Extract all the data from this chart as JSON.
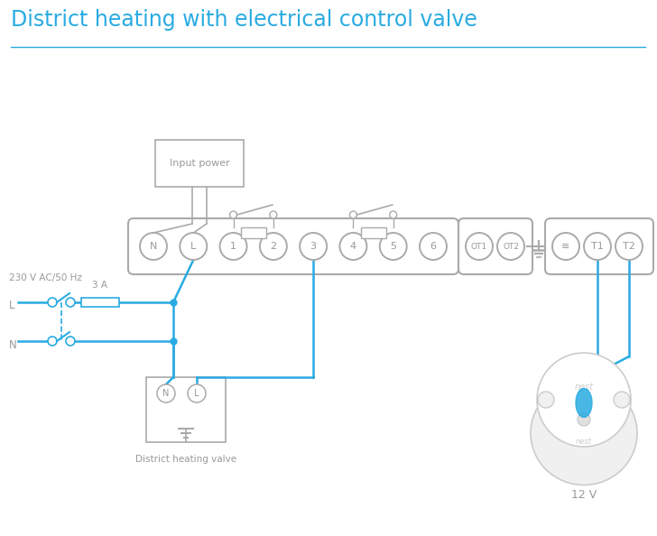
{
  "title": "District heating with electrical control valve",
  "title_color": "#29abe2",
  "title_fontsize": 17,
  "bg_color": "#ffffff",
  "wire_color": "#29abe2",
  "gray": "#999999",
  "dgray": "#aaaaaa",
  "lgray": "#cccccc",
  "terminal_labels": [
    "N",
    "L",
    "1",
    "2",
    "3",
    "4",
    "5",
    "6"
  ],
  "ot_labels": [
    "OT1",
    "OT2"
  ],
  "right_labels": [
    "≡",
    "T1",
    "T2"
  ],
  "label_230": "230 V AC/50 Hz",
  "label_L": "L",
  "label_N": "N",
  "label_3A": "3 A",
  "label_dhv": "District heating valve",
  "label_12v": "12 V",
  "label_input": "Input power",
  "label_nest": "nest"
}
